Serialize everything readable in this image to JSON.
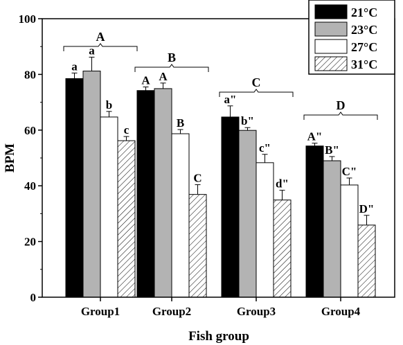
{
  "chart_data": {
    "type": "bar",
    "title": "",
    "xlabel": "Fish group",
    "ylabel": "BPM",
    "ylim": [
      0,
      100
    ],
    "yticks": [
      "0",
      "20",
      "40",
      "60",
      "80",
      "100"
    ],
    "categories": [
      "Group1",
      "Group2",
      "Group3",
      "Group4"
    ],
    "series": [
      {
        "name": "21°C",
        "fill": "#000000",
        "hatch": false,
        "values": [
          78.5,
          74.2,
          64.7,
          54.3
        ],
        "errors": [
          2.0,
          1.3,
          4.0,
          1.0
        ],
        "letters": [
          "a",
          "A",
          "a\"",
          "A\""
        ]
      },
      {
        "name": "23°C",
        "fill": "#b3b3b3",
        "hatch": false,
        "values": [
          81.2,
          74.9,
          59.9,
          49.0
        ],
        "errors": [
          5.0,
          2.0,
          1.0,
          1.5
        ],
        "letters": [
          "a",
          "A",
          "b\"",
          "B\""
        ]
      },
      {
        "name": "27°C",
        "fill": "#ffffff",
        "hatch": false,
        "values": [
          64.7,
          58.7,
          48.3,
          40.3
        ],
        "errors": [
          2.0,
          1.5,
          3.0,
          2.5
        ],
        "letters": [
          "b",
          "B",
          "c\"",
          "C\""
        ]
      },
      {
        "name": "31°C",
        "fill": "#ffffff",
        "hatch": true,
        "values": [
          56.2,
          36.9,
          34.9,
          25.9
        ],
        "errors": [
          1.5,
          3.5,
          3.5,
          3.5
        ],
        "letters": [
          "c",
          "C",
          "d\"",
          "D\""
        ]
      }
    ],
    "group_letters": [
      "A",
      "B",
      "C",
      "D"
    ],
    "legend_position": "top-right",
    "grid": false
  }
}
